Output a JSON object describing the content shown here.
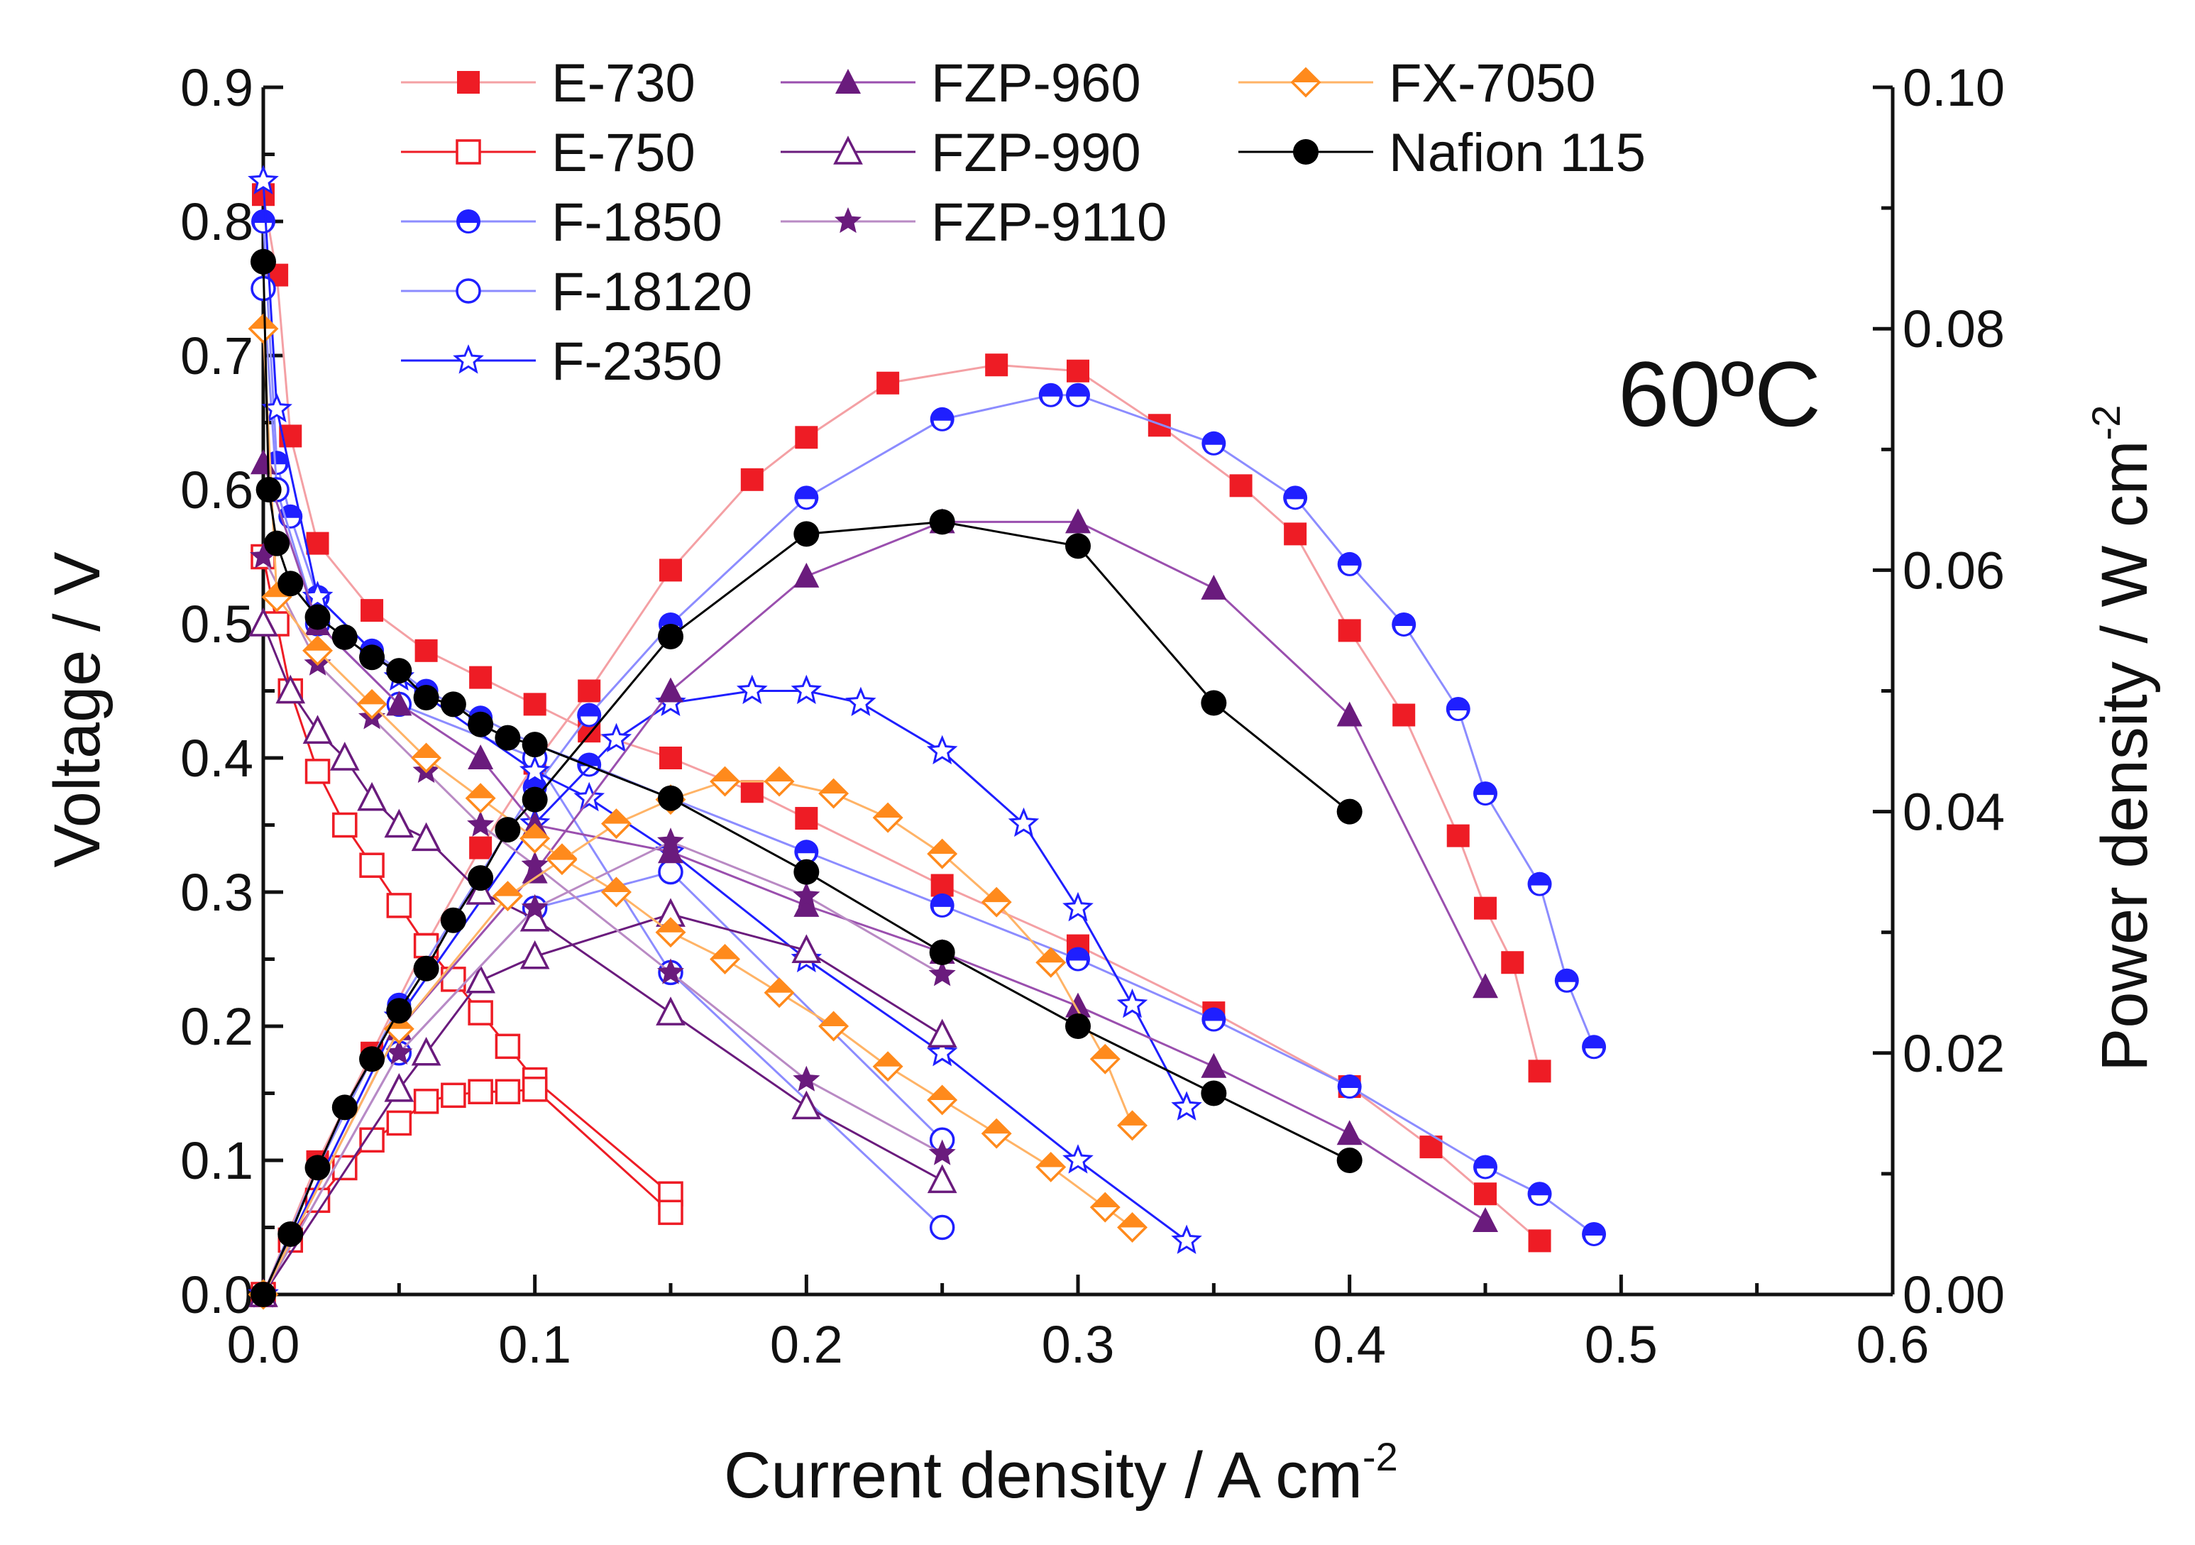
{
  "chart_data": {
    "type": "line",
    "title": "",
    "annotation": "60ºC",
    "xlabel": "Current density / A cm",
    "xlabel_sup": "-2",
    "ylabel": "Voltage / V",
    "y2label": "Power density / W cm",
    "y2label_sup": "-2",
    "xlim": [
      0,
      0.6
    ],
    "ylim": [
      0,
      0.9
    ],
    "y2lim": [
      0,
      0.1
    ],
    "xticks": [
      "0.0",
      "0.1",
      "0.2",
      "0.3",
      "0.4",
      "0.5",
      "0.6"
    ],
    "yticks": [
      "0.0",
      "0.1",
      "0.2",
      "0.3",
      "0.4",
      "0.5",
      "0.6",
      "0.7",
      "0.8",
      "0.9"
    ],
    "y2ticks": [
      "0.00",
      "0.02",
      "0.04",
      "0.06",
      "0.08",
      "0.10"
    ],
    "grid": false,
    "legend_position": "top-left",
    "colors": {
      "red": "#ee1c25",
      "blue": "#1f1fff",
      "purple": "#6a1b7d",
      "orange": "#ff8a1c",
      "black": "#000000"
    },
    "series": [
      {
        "name": "E-730",
        "color": "#ee1c25",
        "line": "#f4a0a4",
        "marker": "square-filled",
        "voltage": [
          [
            0,
            0.82
          ],
          [
            0.005,
            0.76
          ],
          [
            0.01,
            0.64
          ],
          [
            0.02,
            0.56
          ],
          [
            0.04,
            0.51
          ],
          [
            0.06,
            0.48
          ],
          [
            0.08,
            0.46
          ],
          [
            0.1,
            0.44
          ],
          [
            0.12,
            0.42
          ],
          [
            0.15,
            0.4
          ],
          [
            0.18,
            0.375
          ],
          [
            0.2,
            0.355
          ],
          [
            0.25,
            0.305
          ],
          [
            0.3,
            0.26
          ],
          [
            0.35,
            0.21
          ],
          [
            0.4,
            0.155
          ],
          [
            0.43,
            0.11
          ],
          [
            0.45,
            0.075
          ],
          [
            0.47,
            0.04
          ]
        ],
        "power": [
          [
            0,
            0
          ],
          [
            0.02,
            0.011
          ],
          [
            0.04,
            0.02
          ],
          [
            0.06,
            0.029
          ],
          [
            0.08,
            0.037
          ],
          [
            0.1,
            0.044
          ],
          [
            0.12,
            0.05
          ],
          [
            0.15,
            0.06
          ],
          [
            0.18,
            0.0675
          ],
          [
            0.2,
            0.071
          ],
          [
            0.23,
            0.0755
          ],
          [
            0.27,
            0.077
          ],
          [
            0.3,
            0.0765
          ],
          [
            0.33,
            0.072
          ],
          [
            0.36,
            0.067
          ],
          [
            0.38,
            0.063
          ],
          [
            0.4,
            0.055
          ],
          [
            0.42,
            0.048
          ],
          [
            0.44,
            0.038
          ],
          [
            0.45,
            0.032
          ],
          [
            0.46,
            0.0275
          ],
          [
            0.47,
            0.0185
          ]
        ]
      },
      {
        "name": "E-750",
        "color": "#ee1c25",
        "line": "#ee1c25",
        "marker": "square-open",
        "voltage": [
          [
            0,
            0.55
          ],
          [
            0.005,
            0.5
          ],
          [
            0.01,
            0.45
          ],
          [
            0.02,
            0.39
          ],
          [
            0.03,
            0.35
          ],
          [
            0.04,
            0.32
          ],
          [
            0.05,
            0.29
          ],
          [
            0.06,
            0.26
          ],
          [
            0.07,
            0.235
          ],
          [
            0.08,
            0.21
          ],
          [
            0.09,
            0.185
          ],
          [
            0.1,
            0.16
          ],
          [
            0.15,
            0.075
          ]
        ],
        "power": [
          [
            0,
            0
          ],
          [
            0.01,
            0.0045
          ],
          [
            0.02,
            0.0078
          ],
          [
            0.03,
            0.0105
          ],
          [
            0.04,
            0.0128
          ],
          [
            0.05,
            0.0142
          ],
          [
            0.06,
            0.016
          ],
          [
            0.07,
            0.0165
          ],
          [
            0.08,
            0.0168
          ],
          [
            0.09,
            0.0168
          ],
          [
            0.1,
            0.017
          ],
          [
            0.15,
            0.0068
          ]
        ]
      },
      {
        "name": "F-1850",
        "color": "#1f1fff",
        "line": "#8c8cff",
        "marker": "circle-half",
        "voltage": [
          [
            0,
            0.8
          ],
          [
            0.005,
            0.62
          ],
          [
            0.01,
            0.58
          ],
          [
            0.02,
            0.52
          ],
          [
            0.04,
            0.48
          ],
          [
            0.06,
            0.45
          ],
          [
            0.08,
            0.43
          ],
          [
            0.1,
            0.41
          ],
          [
            0.12,
            0.395
          ],
          [
            0.15,
            0.37
          ],
          [
            0.2,
            0.33
          ],
          [
            0.25,
            0.29
          ],
          [
            0.3,
            0.25
          ],
          [
            0.35,
            0.205
          ],
          [
            0.4,
            0.155
          ],
          [
            0.45,
            0.095
          ],
          [
            0.47,
            0.075
          ],
          [
            0.49,
            0.045
          ]
        ],
        "power": [
          [
            0,
            0
          ],
          [
            0.02,
            0.0105
          ],
          [
            0.05,
            0.024
          ],
          [
            0.1,
            0.042
          ],
          [
            0.12,
            0.048
          ],
          [
            0.15,
            0.0555
          ],
          [
            0.2,
            0.066
          ],
          [
            0.25,
            0.0725
          ],
          [
            0.29,
            0.0745
          ],
          [
            0.3,
            0.0745
          ],
          [
            0.35,
            0.0705
          ],
          [
            0.38,
            0.066
          ],
          [
            0.4,
            0.0605
          ],
          [
            0.42,
            0.0555
          ],
          [
            0.44,
            0.0485
          ],
          [
            0.45,
            0.0415
          ],
          [
            0.47,
            0.034
          ],
          [
            0.48,
            0.026
          ],
          [
            0.49,
            0.0205
          ]
        ]
      },
      {
        "name": "F-18120",
        "color": "#1f1fff",
        "line": "#8c8cff",
        "marker": "circle-open",
        "voltage": [
          [
            0,
            0.75
          ],
          [
            0.005,
            0.6
          ],
          [
            0.02,
            0.5
          ],
          [
            0.05,
            0.44
          ],
          [
            0.1,
            0.4
          ],
          [
            0.15,
            0.24
          ],
          [
            0.25,
            0.05
          ]
        ],
        "power": [
          [
            0,
            0
          ],
          [
            0.05,
            0.02
          ],
          [
            0.1,
            0.032
          ],
          [
            0.15,
            0.035
          ],
          [
            0.25,
            0.0128
          ]
        ]
      },
      {
        "name": "F-2350",
        "color": "#1f1fff",
        "line": "#1f1fff",
        "marker": "star-open",
        "voltage": [
          [
            0,
            0.83
          ],
          [
            0.005,
            0.66
          ],
          [
            0.02,
            0.52
          ],
          [
            0.05,
            0.46
          ],
          [
            0.1,
            0.39
          ],
          [
            0.12,
            0.37
          ],
          [
            0.15,
            0.33
          ],
          [
            0.2,
            0.25
          ],
          [
            0.25,
            0.18
          ],
          [
            0.3,
            0.1
          ],
          [
            0.34,
            0.04
          ]
        ],
        "power": [
          [
            0,
            0
          ],
          [
            0.05,
            0.023
          ],
          [
            0.1,
            0.039
          ],
          [
            0.13,
            0.046
          ],
          [
            0.15,
            0.049
          ],
          [
            0.18,
            0.05
          ],
          [
            0.2,
            0.05
          ],
          [
            0.22,
            0.049
          ],
          [
            0.25,
            0.045
          ],
          [
            0.28,
            0.039
          ],
          [
            0.3,
            0.032
          ],
          [
            0.32,
            0.024
          ],
          [
            0.34,
            0.0155
          ]
        ]
      },
      {
        "name": "FZP-960",
        "color": "#6a1b7d",
        "line": "#9a4fae",
        "marker": "triangle-filled",
        "voltage": [
          [
            0,
            0.62
          ],
          [
            0.02,
            0.5
          ],
          [
            0.05,
            0.44
          ],
          [
            0.08,
            0.4
          ],
          [
            0.1,
            0.35
          ],
          [
            0.15,
            0.33
          ],
          [
            0.2,
            0.29
          ],
          [
            0.25,
            0.255
          ],
          [
            0.3,
            0.215
          ],
          [
            0.35,
            0.17
          ],
          [
            0.4,
            0.12
          ],
          [
            0.45,
            0.055
          ]
        ],
        "power": [
          [
            0,
            0
          ],
          [
            0.05,
            0.022
          ],
          [
            0.1,
            0.035
          ],
          [
            0.15,
            0.05
          ],
          [
            0.2,
            0.0595
          ],
          [
            0.25,
            0.064
          ],
          [
            0.3,
            0.064
          ],
          [
            0.35,
            0.0585
          ],
          [
            0.4,
            0.048
          ],
          [
            0.45,
            0.0255
          ]
        ]
      },
      {
        "name": "FZP-990",
        "color": "#6a1b7d",
        "line": "#6a1b7d",
        "marker": "triangle-open",
        "voltage": [
          [
            0,
            0.5
          ],
          [
            0.01,
            0.45
          ],
          [
            0.02,
            0.42
          ],
          [
            0.03,
            0.4
          ],
          [
            0.04,
            0.37
          ],
          [
            0.05,
            0.35
          ],
          [
            0.06,
            0.34
          ],
          [
            0.08,
            0.3
          ],
          [
            0.1,
            0.28
          ],
          [
            0.15,
            0.21
          ],
          [
            0.2,
            0.14
          ],
          [
            0.25,
            0.085
          ]
        ],
        "power": [
          [
            0,
            0
          ],
          [
            0.05,
            0.017
          ],
          [
            0.06,
            0.02
          ],
          [
            0.08,
            0.026
          ],
          [
            0.1,
            0.028
          ],
          [
            0.15,
            0.0315
          ],
          [
            0.2,
            0.0285
          ],
          [
            0.25,
            0.0215
          ]
        ]
      },
      {
        "name": "FZP-9110",
        "color": "#6a1b7d",
        "line": "#b98ac4",
        "marker": "star-filled",
        "voltage": [
          [
            0,
            0.55
          ],
          [
            0.02,
            0.47
          ],
          [
            0.04,
            0.43
          ],
          [
            0.06,
            0.39
          ],
          [
            0.08,
            0.35
          ],
          [
            0.1,
            0.32
          ],
          [
            0.15,
            0.24
          ],
          [
            0.2,
            0.16
          ],
          [
            0.25,
            0.105
          ]
        ],
        "power": [
          [
            0,
            0
          ],
          [
            0.05,
            0.02
          ],
          [
            0.1,
            0.032
          ],
          [
            0.15,
            0.0375
          ],
          [
            0.2,
            0.033
          ],
          [
            0.25,
            0.0265
          ]
        ]
      },
      {
        "name": "FX-7050",
        "color": "#ff8a1c",
        "line": "#ffb366",
        "marker": "diamond-half",
        "voltage": [
          [
            0,
            0.72
          ],
          [
            0.005,
            0.52
          ],
          [
            0.02,
            0.48
          ],
          [
            0.04,
            0.44
          ],
          [
            0.06,
            0.4
          ],
          [
            0.08,
            0.37
          ],
          [
            0.1,
            0.34
          ],
          [
            0.11,
            0.325
          ],
          [
            0.13,
            0.3
          ],
          [
            0.15,
            0.27
          ],
          [
            0.17,
            0.25
          ],
          [
            0.19,
            0.225
          ],
          [
            0.21,
            0.2
          ],
          [
            0.23,
            0.17
          ],
          [
            0.25,
            0.145
          ],
          [
            0.27,
            0.12
          ],
          [
            0.29,
            0.095
          ],
          [
            0.31,
            0.065
          ],
          [
            0.32,
            0.05
          ]
        ],
        "power": [
          [
            0,
            0
          ],
          [
            0.05,
            0.022
          ],
          [
            0.09,
            0.033
          ],
          [
            0.11,
            0.036
          ],
          [
            0.13,
            0.039
          ],
          [
            0.15,
            0.041
          ],
          [
            0.17,
            0.0425
          ],
          [
            0.19,
            0.0425
          ],
          [
            0.21,
            0.0415
          ],
          [
            0.23,
            0.0395
          ],
          [
            0.25,
            0.0365
          ],
          [
            0.27,
            0.0325
          ],
          [
            0.29,
            0.0275
          ],
          [
            0.31,
            0.0195
          ],
          [
            0.32,
            0.014
          ]
        ]
      },
      {
        "name": "Nafion 115",
        "color": "#000000",
        "line": "#000000",
        "marker": "circle-filled",
        "voltage": [
          [
            0,
            0.77
          ],
          [
            0.002,
            0.6
          ],
          [
            0.005,
            0.56
          ],
          [
            0.01,
            0.53
          ],
          [
            0.02,
            0.505
          ],
          [
            0.03,
            0.49
          ],
          [
            0.04,
            0.475
          ],
          [
            0.05,
            0.465
          ],
          [
            0.06,
            0.445
          ],
          [
            0.07,
            0.44
          ],
          [
            0.08,
            0.425
          ],
          [
            0.09,
            0.415
          ],
          [
            0.1,
            0.41
          ],
          [
            0.15,
            0.37
          ],
          [
            0.2,
            0.315
          ],
          [
            0.25,
            0.255
          ],
          [
            0.3,
            0.2
          ],
          [
            0.35,
            0.15
          ],
          [
            0.4,
            0.1
          ]
        ],
        "power": [
          [
            0,
            0
          ],
          [
            0.01,
            0.005
          ],
          [
            0.02,
            0.0105
          ],
          [
            0.03,
            0.0155
          ],
          [
            0.04,
            0.0195
          ],
          [
            0.05,
            0.0235
          ],
          [
            0.06,
            0.027
          ],
          [
            0.07,
            0.031
          ],
          [
            0.08,
            0.0345
          ],
          [
            0.09,
            0.0385
          ],
          [
            0.1,
            0.041
          ],
          [
            0.15,
            0.0545
          ],
          [
            0.2,
            0.063
          ],
          [
            0.25,
            0.064
          ],
          [
            0.3,
            0.062
          ],
          [
            0.35,
            0.049
          ],
          [
            0.4,
            0.04
          ]
        ]
      }
    ]
  }
}
